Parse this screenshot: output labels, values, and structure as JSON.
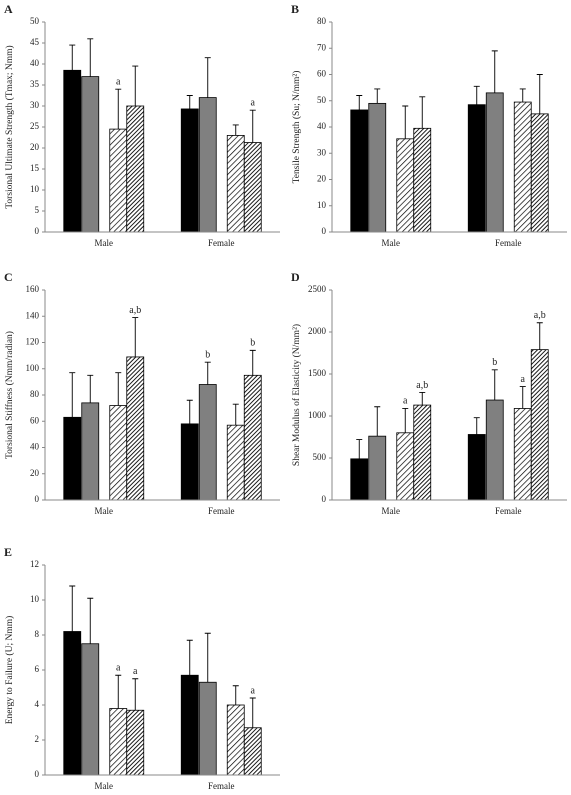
{
  "chart_data": [
    {
      "type": "bar",
      "label": "A",
      "ylabel": "Torsional Ultimate Strength (Tmax; Nmm)",
      "categories": [
        "Male",
        "Female"
      ],
      "ylim": [
        0,
        50
      ],
      "yticks": [
        0,
        5,
        10,
        15,
        20,
        25,
        30,
        35,
        40,
        45,
        50
      ],
      "series": [
        {
          "color": "#000000",
          "values": [
            38.5,
            29.3
          ],
          "errors": [
            6,
            3.2
          ]
        },
        {
          "color": "#808080",
          "values": [
            37,
            32
          ],
          "errors": [
            9,
            9.5
          ]
        },
        {
          "color": "#ffffff",
          "hatch": "light",
          "values": [
            24.5,
            23
          ],
          "errors": [
            9.5,
            2.5
          ],
          "labels": [
            "a",
            null
          ]
        },
        {
          "color": "#ffffff",
          "hatch": "dense",
          "values": [
            30,
            21.3
          ],
          "errors": [
            9.5,
            7.7
          ],
          "labels": [
            null,
            "a"
          ]
        }
      ]
    },
    {
      "type": "bar",
      "label": "B",
      "ylabel": "Tensile Strength (Su; N/mm²)",
      "categories": [
        "Male",
        "Female"
      ],
      "ylim": [
        0,
        80
      ],
      "yticks": [
        0,
        10,
        20,
        30,
        40,
        50,
        60,
        70,
        80
      ],
      "series": [
        {
          "color": "#000000",
          "values": [
            46.5,
            48.5
          ],
          "errors": [
            5.5,
            7
          ]
        },
        {
          "color": "#808080",
          "values": [
            49,
            53
          ],
          "errors": [
            5.5,
            16
          ]
        },
        {
          "color": "#ffffff",
          "hatch": "light",
          "values": [
            35.5,
            49.5
          ],
          "errors": [
            12.5,
            5
          ]
        },
        {
          "color": "#ffffff",
          "hatch": "dense",
          "values": [
            39.5,
            45
          ],
          "errors": [
            12,
            15
          ]
        }
      ]
    },
    {
      "type": "bar",
      "label": "C",
      "ylabel": "Torsional Stiffness (Nmm/radian)",
      "categories": [
        "Male",
        "Female"
      ],
      "ylim": [
        0,
        160
      ],
      "yticks": [
        0,
        20,
        40,
        60,
        80,
        100,
        120,
        140,
        160
      ],
      "series": [
        {
          "color": "#000000",
          "values": [
            63,
            58
          ],
          "errors": [
            34,
            18
          ]
        },
        {
          "color": "#808080",
          "values": [
            74,
            88
          ],
          "errors": [
            21,
            17
          ],
          "labels": [
            null,
            "b"
          ]
        },
        {
          "color": "#ffffff",
          "hatch": "light",
          "values": [
            72,
            57
          ],
          "errors": [
            25,
            16
          ]
        },
        {
          "color": "#ffffff",
          "hatch": "dense",
          "values": [
            109,
            95
          ],
          "errors": [
            30,
            19
          ],
          "labels": [
            "a,b",
            "b"
          ]
        }
      ]
    },
    {
      "type": "bar",
      "label": "D",
      "ylabel": "Shear Modulus of Elasticity (N/mm²)",
      "categories": [
        "Male",
        "Female"
      ],
      "ylim": [
        0,
        2500
      ],
      "yticks": [
        0,
        500,
        1000,
        1500,
        2000,
        2500
      ],
      "series": [
        {
          "color": "#000000",
          "values": [
            490,
            780
          ],
          "errors": [
            230,
            200
          ]
        },
        {
          "color": "#808080",
          "values": [
            760,
            1190
          ],
          "errors": [
            350,
            360
          ],
          "labels": [
            null,
            "b"
          ]
        },
        {
          "color": "#ffffff",
          "hatch": "light",
          "values": [
            800,
            1090
          ],
          "errors": [
            290,
            260
          ],
          "labels": [
            "a",
            "a"
          ]
        },
        {
          "color": "#ffffff",
          "hatch": "dense",
          "values": [
            1130,
            1790
          ],
          "errors": [
            150,
            320
          ],
          "labels": [
            "a,b",
            "a,b"
          ]
        }
      ]
    },
    {
      "type": "bar",
      "label": "E",
      "ylabel": "Energy to Failure (U; Nmm)",
      "categories": [
        "Male",
        "Female"
      ],
      "ylim": [
        0,
        12
      ],
      "yticks": [
        0,
        2,
        4,
        6,
        8,
        10,
        12
      ],
      "series": [
        {
          "color": "#000000",
          "values": [
            8.2,
            5.7
          ],
          "errors": [
            2.6,
            2
          ]
        },
        {
          "color": "#808080",
          "values": [
            7.5,
            5.3
          ],
          "errors": [
            2.6,
            2.8
          ]
        },
        {
          "color": "#ffffff",
          "hatch": "light",
          "values": [
            3.8,
            4.0
          ],
          "errors": [
            1.9,
            1.1
          ],
          "labels": [
            "a",
            null
          ]
        },
        {
          "color": "#ffffff",
          "hatch": "dense",
          "values": [
            3.7,
            2.7
          ],
          "errors": [
            1.8,
            1.7
          ],
          "labels": [
            "a",
            "a"
          ]
        }
      ]
    }
  ]
}
